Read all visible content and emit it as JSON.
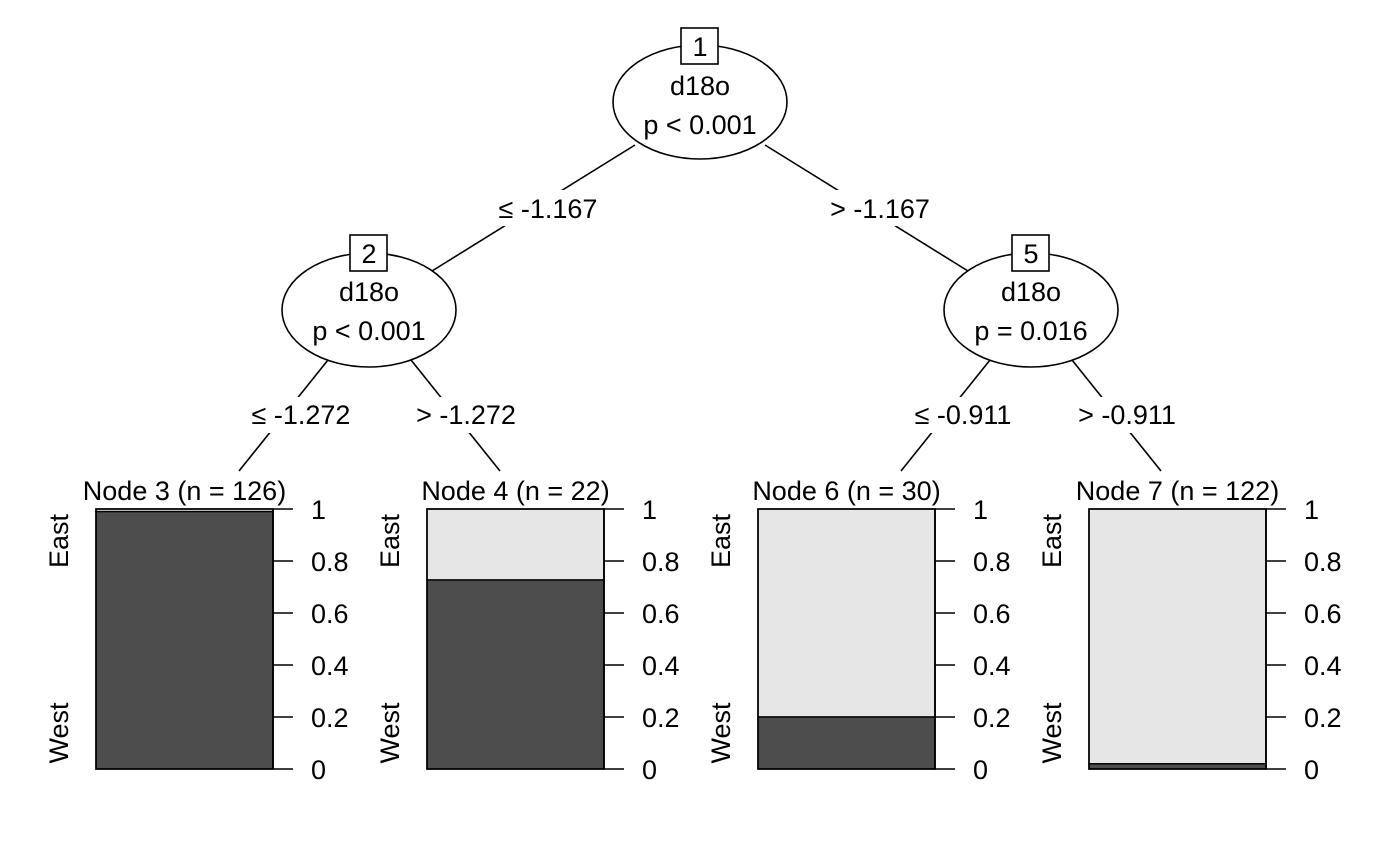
{
  "inner_nodes": [
    {
      "id": "1",
      "variable": "d18o",
      "pvalue": "p < 0.001"
    },
    {
      "id": "2",
      "variable": "d18o",
      "pvalue": "p < 0.001"
    },
    {
      "id": "5",
      "variable": "d18o",
      "pvalue": "p = 0.016"
    }
  ],
  "splits": [
    {
      "from": "1",
      "to": "2",
      "label": "≤ -1.167"
    },
    {
      "from": "1",
      "to": "5",
      "label": "> -1.167"
    },
    {
      "from": "2",
      "to": "3",
      "label": "≤ -1.272"
    },
    {
      "from": "2",
      "to": "4",
      "label": "> -1.272"
    },
    {
      "from": "5",
      "to": "6",
      "label": "≤ -0.911"
    },
    {
      "from": "5",
      "to": "7",
      "label": "> -0.911"
    }
  ],
  "chart_data": {
    "type": "bar",
    "categories": [
      "West",
      "East"
    ],
    "ylim": [
      0,
      1
    ],
    "yticks": [
      "0",
      "0.2",
      "0.4",
      "0.6",
      "0.8",
      "1"
    ],
    "colors": {
      "West": "#4d4d4d",
      "East": "#e6e6e6"
    },
    "terminal_nodes": [
      {
        "id": "3",
        "title": "Node 3 (n = 126)",
        "n": 126,
        "west_fraction": 0.99
      },
      {
        "id": "4",
        "title": "Node 4 (n = 22)",
        "n": 22,
        "west_fraction": 0.727
      },
      {
        "id": "6",
        "title": "Node 6 (n = 30)",
        "n": 30,
        "west_fraction": 0.2
      },
      {
        "id": "7",
        "title": "Node 7 (n = 122)",
        "n": 122,
        "west_fraction": 0.02
      }
    ]
  }
}
